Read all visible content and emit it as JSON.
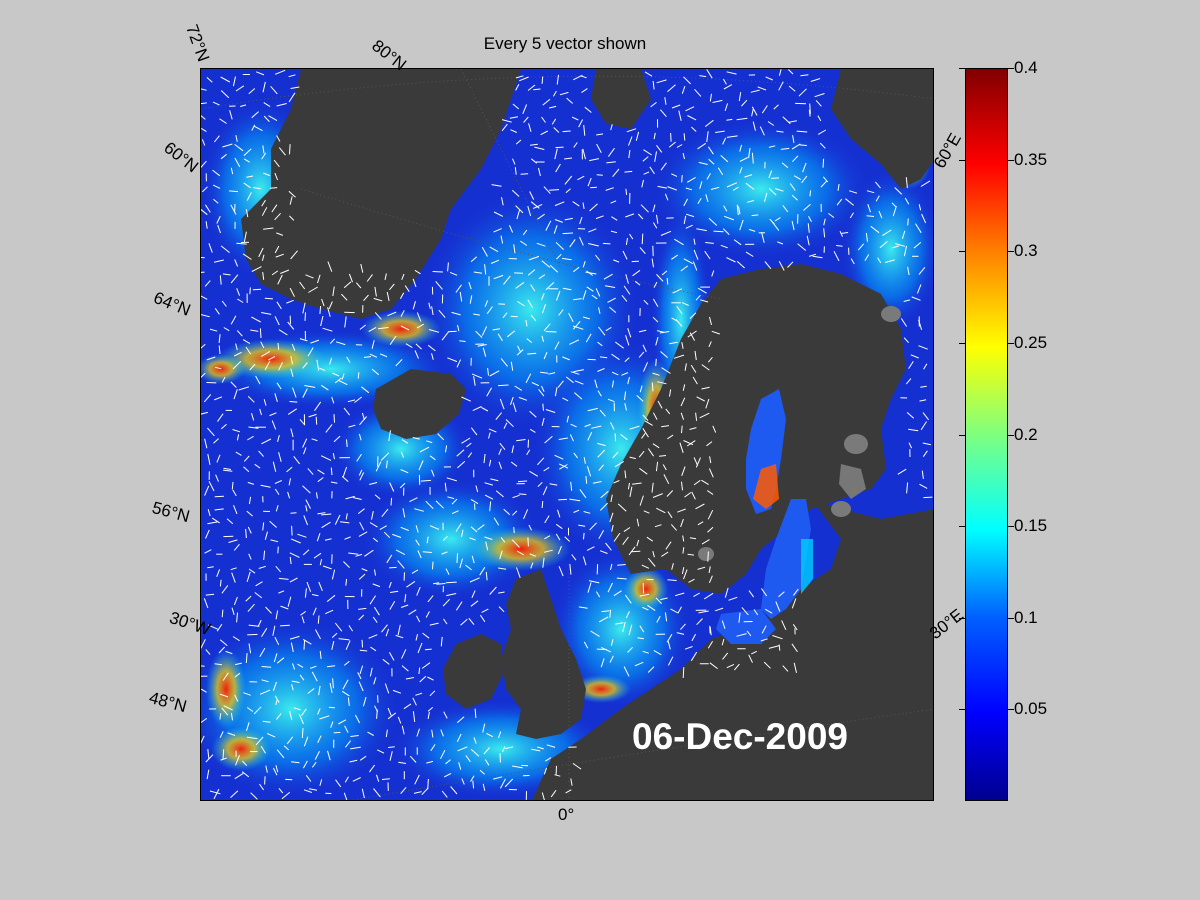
{
  "title": "Every 5 vector shown",
  "date_label": "06-Dec-2009",
  "lat_labels": [
    "72°N",
    "60°N",
    "64°N",
    "56°N",
    "48°N"
  ],
  "lon_labels": [
    "80°N",
    "60°E",
    "30°E",
    "0°",
    "30°W"
  ],
  "colorbar": {
    "min": 0,
    "max": 0.4,
    "ticks": [
      "0.4",
      "0.35",
      "0.3",
      "0.25",
      "0.2",
      "0.15",
      "0.1",
      "0.05"
    ],
    "colormap": "jet"
  },
  "colors": {
    "background": "#c8c8c8",
    "land": "#3a3a3a",
    "ocean_low": "#1a2fd8",
    "current_mid": "#00d8ff",
    "current_high": "#ff2000",
    "vector": "#ffffff"
  }
}
